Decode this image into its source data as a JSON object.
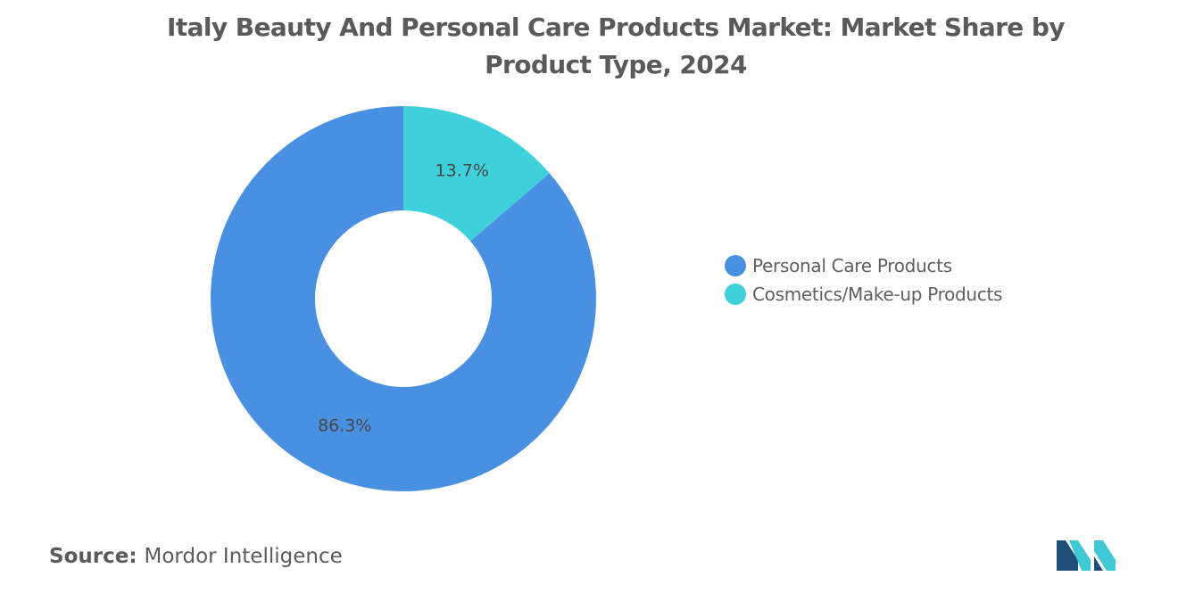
{
  "chart_data": {
    "type": "pie",
    "title": "Italy Beauty And Personal Care Products Market: Market Share by Product Type, 2024",
    "slices": [
      {
        "label": "Personal Care Products",
        "value": 86.3,
        "display": "86.3%",
        "color": "#4a90e2"
      },
      {
        "label": "Cosmetics/Make-up Products",
        "value": 13.7,
        "display": "13.7%",
        "color": "#3fd1db"
      }
    ],
    "donut": true,
    "legend_position": "right"
  },
  "source": {
    "key": "Source:",
    "value": "Mordor Intelligence"
  },
  "logo": {
    "icon": "mordor-intelligence-logo-icon",
    "colors": [
      "#1f4e79",
      "#3fc8d6"
    ]
  }
}
